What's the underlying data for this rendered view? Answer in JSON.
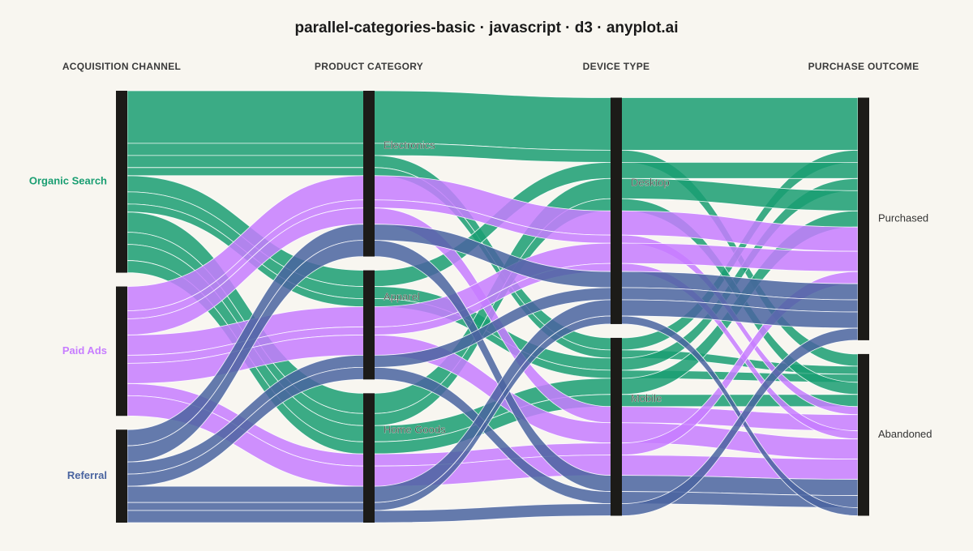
{
  "chart_data": {
    "type": "parallel-categories",
    "title": "parallel-categories-basic · javascript · d3 · anyplot.ai",
    "dimensions": [
      {
        "name": "ACQUISITION CHANNEL",
        "categories": [
          "Organic Search",
          "Paid Ads",
          "Referral"
        ],
        "colors": [
          "#1a9e72",
          "#c77dff",
          "#4a64a0"
        ]
      },
      {
        "name": "PRODUCT CATEGORY",
        "categories": [
          "Electronics",
          "Apparel",
          "Home Goods"
        ]
      },
      {
        "name": "DEVICE TYPE",
        "categories": [
          "Desktop",
          "Mobile"
        ]
      },
      {
        "name": "PURCHASE OUTCOME",
        "categories": [
          "Purchased",
          "Abandoned"
        ]
      }
    ],
    "flows": [
      {
        "path": [
          "Organic Search",
          "Electronics",
          "Desktop",
          "Purchased"
        ],
        "count": 26
      },
      {
        "path": [
          "Organic Search",
          "Electronics",
          "Desktop",
          "Abandoned"
        ],
        "count": 6
      },
      {
        "path": [
          "Organic Search",
          "Electronics",
          "Mobile",
          "Purchased"
        ],
        "count": 6
      },
      {
        "path": [
          "Organic Search",
          "Electronics",
          "Mobile",
          "Abandoned"
        ],
        "count": 4
      },
      {
        "path": [
          "Organic Search",
          "Apparel",
          "Desktop",
          "Purchased"
        ],
        "count": 8
      },
      {
        "path": [
          "Organic Search",
          "Apparel",
          "Mobile",
          "Purchased"
        ],
        "count": 6
      },
      {
        "path": [
          "Organic Search",
          "Apparel",
          "Mobile",
          "Abandoned"
        ],
        "count": 4
      },
      {
        "path": [
          "Organic Search",
          "Home Goods",
          "Desktop",
          "Purchased"
        ],
        "count": 10
      },
      {
        "path": [
          "Organic Search",
          "Home Goods",
          "Desktop",
          "Abandoned"
        ],
        "count": 6
      },
      {
        "path": [
          "Organic Search",
          "Home Goods",
          "Mobile",
          "Purchased"
        ],
        "count": 8
      },
      {
        "path": [
          "Organic Search",
          "Home Goods",
          "Mobile",
          "Abandoned"
        ],
        "count": 6
      },
      {
        "path": [
          "Paid Ads",
          "Electronics",
          "Desktop",
          "Purchased"
        ],
        "count": 12
      },
      {
        "path": [
          "Paid Ads",
          "Electronics",
          "Desktop",
          "Abandoned"
        ],
        "count": 4
      },
      {
        "path": [
          "Paid Ads",
          "Electronics",
          "Mobile",
          "Abandoned"
        ],
        "count": 8
      },
      {
        "path": [
          "Paid Ads",
          "Apparel",
          "Desktop",
          "Purchased"
        ],
        "count": 10
      },
      {
        "path": [
          "Paid Ads",
          "Apparel",
          "Desktop",
          "Abandoned"
        ],
        "count": 4
      },
      {
        "path": [
          "Paid Ads",
          "Apparel",
          "Mobile",
          "Abandoned"
        ],
        "count": 10
      },
      {
        "path": [
          "Paid Ads",
          "Home Goods",
          "Mobile",
          "Purchased"
        ],
        "count": 6
      },
      {
        "path": [
          "Paid Ads",
          "Home Goods",
          "Mobile",
          "Abandoned"
        ],
        "count": 10
      },
      {
        "path": [
          "Referral",
          "Electronics",
          "Desktop",
          "Purchased"
        ],
        "count": 8
      },
      {
        "path": [
          "Referral",
          "Electronics",
          "Mobile",
          "Abandoned"
        ],
        "count": 8
      },
      {
        "path": [
          "Referral",
          "Apparel",
          "Desktop",
          "Purchased"
        ],
        "count": 6
      },
      {
        "path": [
          "Referral",
          "Apparel",
          "Mobile",
          "Abandoned"
        ],
        "count": 6
      },
      {
        "path": [
          "Referral",
          "Home Goods",
          "Desktop",
          "Abandoned"
        ],
        "count": 4
      },
      {
        "path": [
          "Referral",
          "Home Goods",
          "Mobile",
          "Purchased"
        ],
        "count": 6
      },
      {
        "path": [
          "Referral",
          "Home Goods",
          "Desktop",
          "Purchased"
        ],
        "count": 8
      }
    ]
  }
}
